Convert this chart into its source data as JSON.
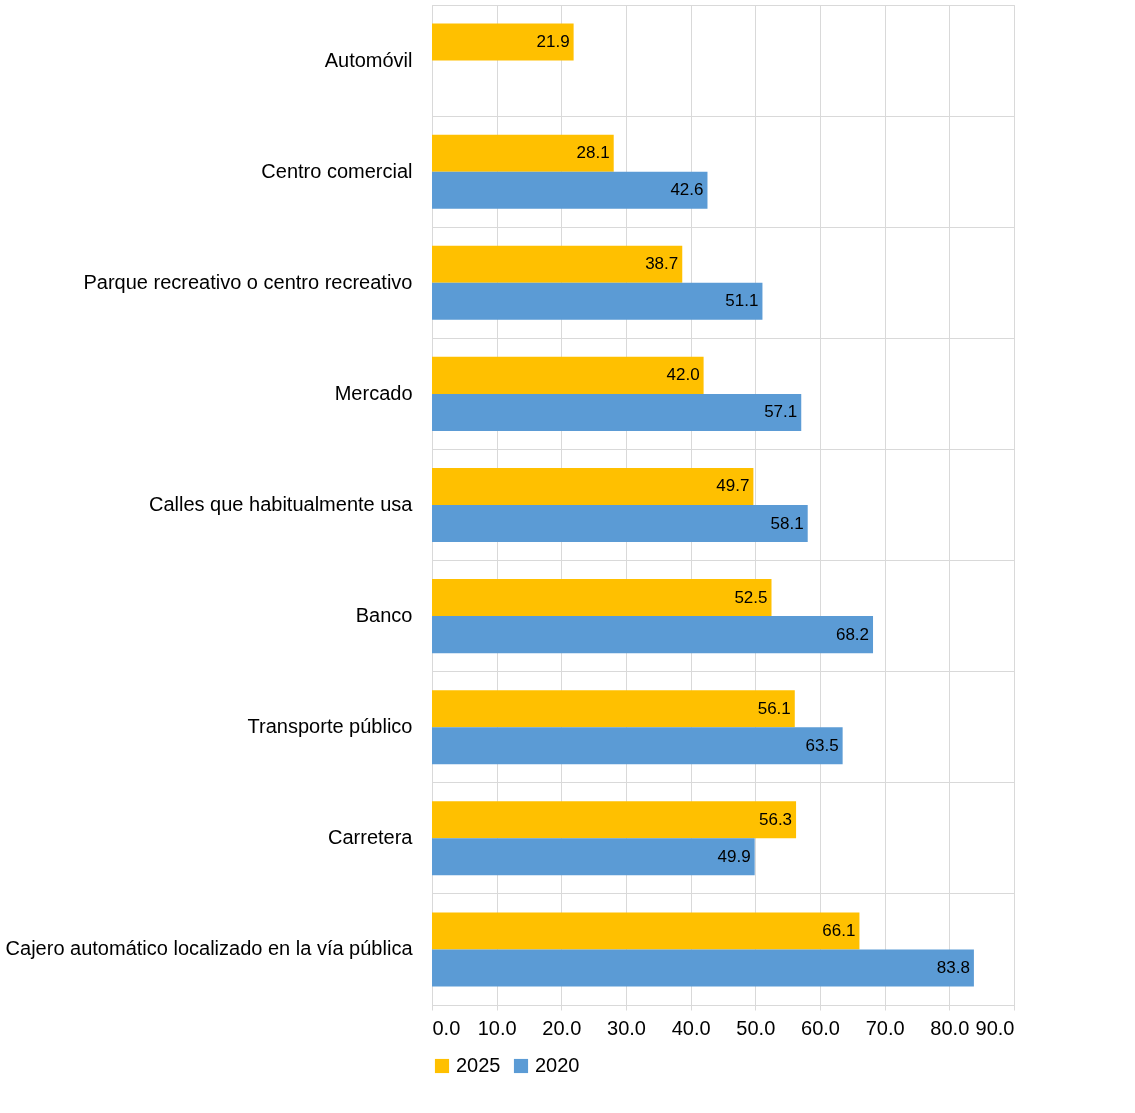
{
  "chart_data": {
    "type": "bar",
    "orientation": "horizontal",
    "categories": [
      "Automóvil",
      "Centro comercial",
      "Parque recreativo o centro recreativo",
      "Mercado",
      "Calles que habitualmente usa",
      "Banco",
      "Transporte público",
      "Carretera",
      "Cajero automático localizado en la vía pública"
    ],
    "series": [
      {
        "name": "2025",
        "color": "#ffc000",
        "values": [
          21.9,
          28.1,
          38.7,
          42.0,
          49.7,
          52.5,
          56.1,
          56.3,
          66.1
        ],
        "value_labels": [
          "21.9",
          "28.1",
          "38.7",
          "42.0",
          "49.7",
          "52.5",
          "56.1",
          "56.3",
          "66.1"
        ]
      },
      {
        "name": "2020",
        "color": "#5b9bd5",
        "values": [
          null,
          42.6,
          51.1,
          57.1,
          58.1,
          68.2,
          63.5,
          49.9,
          83.8
        ],
        "value_labels": [
          null,
          "42.6",
          "51.1",
          "57.1",
          "58.1",
          "68.2",
          "63.5",
          "49.9",
          "83.8"
        ]
      }
    ],
    "xlim": [
      0,
      90
    ],
    "xticks": [
      {
        "value": 0,
        "label": "0.0"
      },
      {
        "value": 10,
        "label": "10.0"
      },
      {
        "value": 20,
        "label": "20.0"
      },
      {
        "value": 30,
        "label": "30.0"
      },
      {
        "value": 40,
        "label": "40.0"
      },
      {
        "value": 50,
        "label": "50.0"
      },
      {
        "value": 60,
        "label": "60.0"
      },
      {
        "value": 70,
        "label": "70.0"
      },
      {
        "value": 80,
        "label": "80.0"
      },
      {
        "value": 90,
        "label": "90.0"
      }
    ],
    "grid": true,
    "legend": "bottom"
  }
}
